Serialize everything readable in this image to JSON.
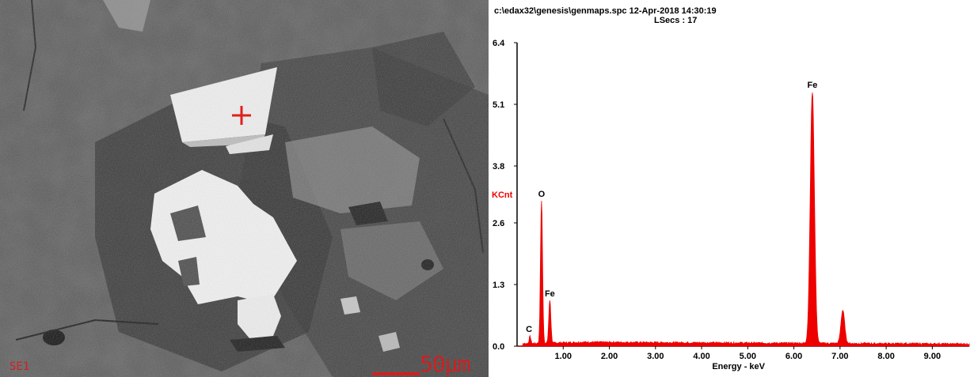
{
  "sem_image": {
    "detector_label": "SE1",
    "scale_label": "50μm",
    "colors": {
      "marker": "#e0201c",
      "overlay_text": "#d02020"
    }
  },
  "eds_header": {
    "file_info": "c:\\edax32\\genesis\\genmaps.spc  12-Apr-2018 14:30:19",
    "lsecs": "LSecs :  17"
  },
  "chart_data": {
    "type": "area",
    "title": "",
    "xlabel": "Energy - keV",
    "ylabel": "KCnt",
    "xlim": [
      0.0,
      9.8
    ],
    "ylim": [
      0.0,
      6.4
    ],
    "x_ticks": [
      {
        "value": 1.0,
        "label": "1.00"
      },
      {
        "value": 2.0,
        "label": "2.00"
      },
      {
        "value": 3.0,
        "label": "3.00"
      },
      {
        "value": 4.0,
        "label": "4.00"
      },
      {
        "value": 5.0,
        "label": "5.00"
      },
      {
        "value": 6.0,
        "label": "6.00"
      },
      {
        "value": 7.0,
        "label": "7.00"
      },
      {
        "value": 8.0,
        "label": "8.00"
      },
      {
        "value": 9.0,
        "label": "9.00"
      }
    ],
    "y_ticks": [
      {
        "value": 0.0,
        "label": "0.0"
      },
      {
        "value": 1.3,
        "label": "1.3"
      },
      {
        "value": 2.6,
        "label": "2.6"
      },
      {
        "value": 3.8,
        "label": "3.8"
      },
      {
        "value": 5.1,
        "label": "5.1"
      },
      {
        "value": 6.4,
        "label": "6.4"
      }
    ],
    "peaks": [
      {
        "label": "C",
        "energy": 0.28,
        "height": 0.15
      },
      {
        "label": "O",
        "energy": 0.53,
        "height": 3.0
      },
      {
        "label": "Fe",
        "energy": 0.71,
        "height": 0.9
      },
      {
        "label": "Fe",
        "energy": 6.4,
        "height": 5.3
      },
      {
        "label": "Fe",
        "energy": 7.06,
        "height": 0.7
      }
    ],
    "peak_labels": [
      {
        "text": "C",
        "energy": 0.26,
        "height": 0.3
      },
      {
        "text": "O",
        "energy": 0.53,
        "height": 3.15
      },
      {
        "text": "Fe",
        "energy": 0.71,
        "height": 1.05
      },
      {
        "text": "Fe",
        "energy": 6.4,
        "height": 5.45
      }
    ],
    "baseline": 0.08,
    "colors": {
      "spectrum": "#ee0000",
      "ylabel": "#ee0000"
    }
  }
}
